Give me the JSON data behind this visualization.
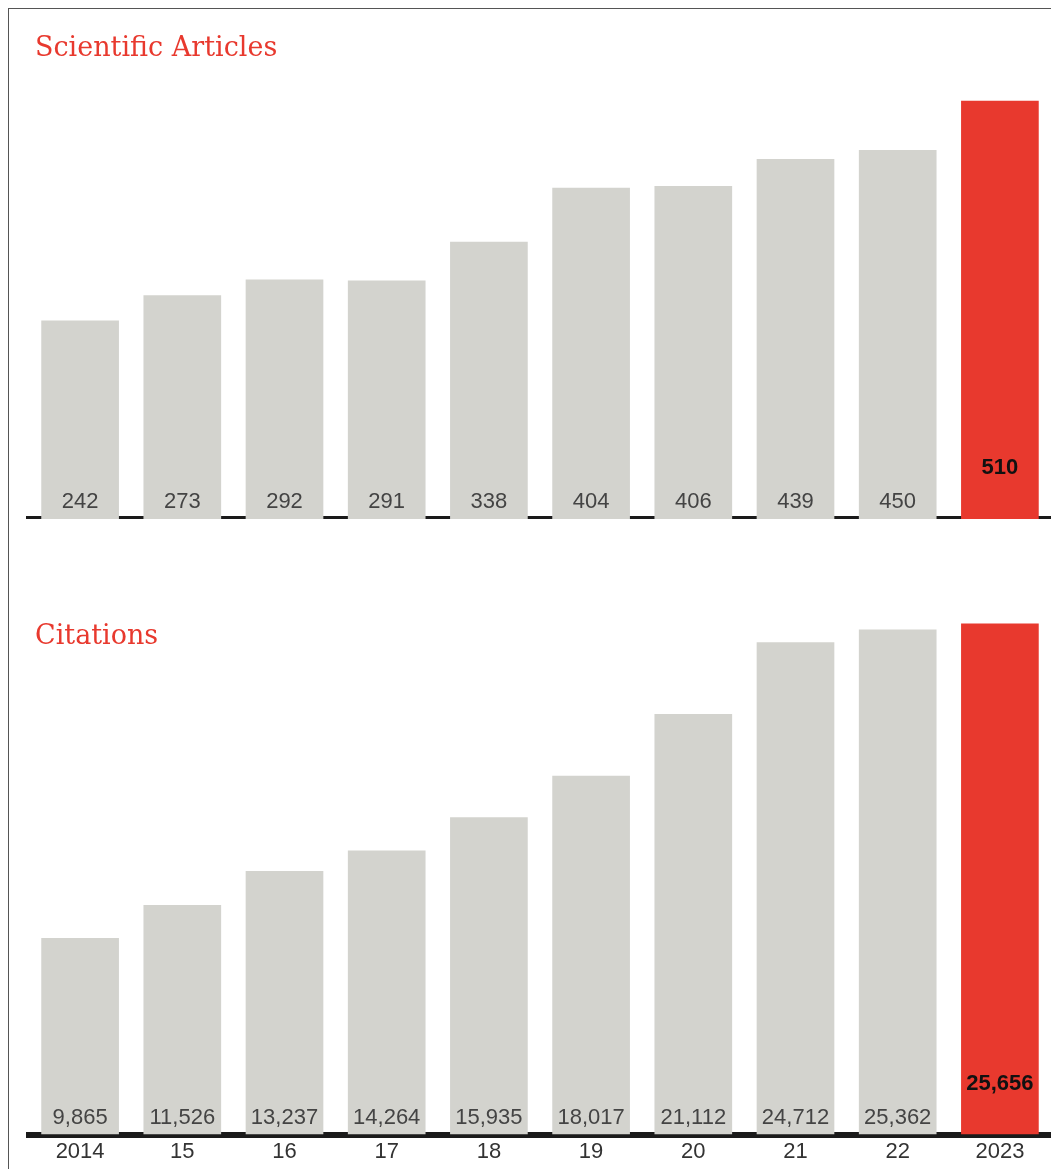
{
  "chart_data": [
    {
      "type": "bar",
      "title": "Scientific Articles",
      "categories": [
        "2014",
        "15",
        "16",
        "17",
        "18",
        "19",
        "20",
        "21",
        "22",
        "2023"
      ],
      "values": [
        242,
        273,
        292,
        291,
        338,
        404,
        406,
        439,
        450,
        510
      ],
      "colors": [
        "#d3d3ce",
        "#d3d3ce",
        "#d3d3ce",
        "#d3d3ce",
        "#d3d3ce",
        "#d3d3ce",
        "#d3d3ce",
        "#d3d3ce",
        "#d3d3ce",
        "#e8392e"
      ],
      "data_labels": true,
      "tick_labels": false,
      "grid": false,
      "legend": false
    },
    {
      "type": "bar",
      "title": "Citations",
      "categories": [
        "2014",
        "15",
        "16",
        "17",
        "18",
        "19",
        "20",
        "21",
        "22",
        "2023"
      ],
      "values": [
        9865,
        11526,
        13237,
        14264,
        15935,
        18017,
        21112,
        24712,
        25362,
        25656
      ],
      "value_labels": [
        "9,865",
        "11,526",
        "13,237",
        "14,264",
        "15,935",
        "18,017",
        "21,112",
        "24,712",
        "25,362",
        "25,656"
      ],
      "colors": [
        "#d3d3ce",
        "#d3d3ce",
        "#d3d3ce",
        "#d3d3ce",
        "#d3d3ce",
        "#d3d3ce",
        "#d3d3ce",
        "#d3d3ce",
        "#d3d3ce",
        "#e8392e"
      ],
      "tick_labels": "x",
      "grid": false,
      "legend": false
    }
  ]
}
